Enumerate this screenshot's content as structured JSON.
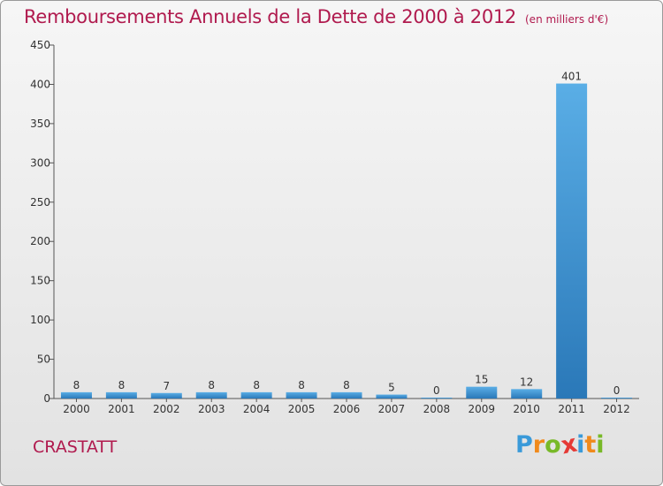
{
  "chart_data": {
    "type": "bar",
    "title": "Remboursements Annuels de la Dette de 2000 à 2012",
    "subtitle": "(en milliers d'€)",
    "categories": [
      "2000",
      "2001",
      "2002",
      "2003",
      "2004",
      "2005",
      "2006",
      "2007",
      "2008",
      "2009",
      "2010",
      "2011",
      "2012"
    ],
    "values": [
      8,
      8,
      7,
      8,
      8,
      8,
      8,
      5,
      0,
      15,
      12,
      401,
      0
    ],
    "data_labels": [
      "8",
      "8",
      "7",
      "8",
      "8",
      "8",
      "8",
      "5",
      "0",
      "15",
      "12",
      "401",
      "0"
    ],
    "ylim": [
      0,
      450
    ],
    "yticks": [
      0,
      50,
      100,
      150,
      200,
      250,
      300,
      350,
      400,
      450
    ],
    "grid": false,
    "colors": {
      "bar_top": "#5aaee6",
      "bar_bottom": "#2a78b8",
      "text": "#333333"
    }
  },
  "footer": {
    "commune": "CRASTATT",
    "logo": "Proxiti",
    "logo_letters": [
      {
        "ch": "P",
        "color": "#3a9ad9"
      },
      {
        "ch": "r",
        "color": "#f08a1c"
      },
      {
        "ch": "o",
        "color": "#78b928"
      },
      {
        "ch": "x",
        "color": "#e53935"
      },
      {
        "ch": "i",
        "color": "#3a9ad9"
      },
      {
        "ch": "t",
        "color": "#f08a1c"
      },
      {
        "ch": "i",
        "color": "#78b928"
      }
    ]
  },
  "colors": {
    "accent": "#b01a4e",
    "background": "#ececec"
  }
}
